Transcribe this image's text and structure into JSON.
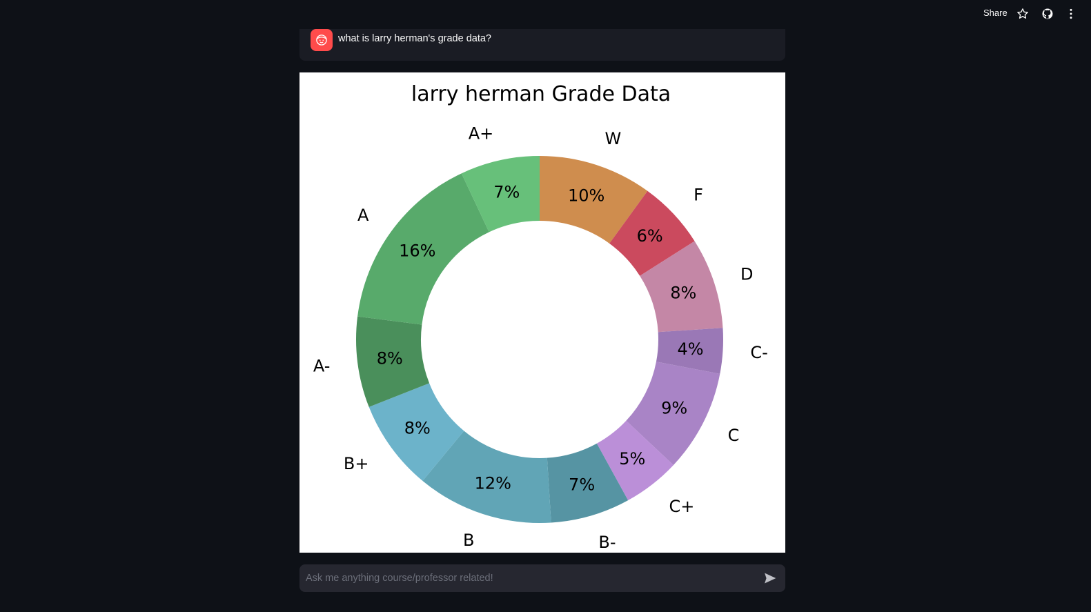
{
  "header": {
    "share_label": "Share",
    "icons": [
      "star-icon",
      "github-icon",
      "more-vertical-icon"
    ]
  },
  "chat": {
    "user_message": "what is larry herman's grade data?",
    "avatar_icon": "face-icon",
    "avatar_color": "#ff4b4b"
  },
  "chat_input": {
    "placeholder": "Ask me anything course/professor related!",
    "send_icon": "send-icon"
  },
  "chart_data": {
    "type": "pie",
    "title": "larry herman Grade Data",
    "donut": true,
    "start_angle_deg": 90,
    "direction": "clockwise",
    "slices": [
      {
        "label": "W",
        "value": 10,
        "display": "10%",
        "color": "#cf8d4e"
      },
      {
        "label": "F",
        "value": 6,
        "display": "6%",
        "color": "#cb4a5e"
      },
      {
        "label": "D",
        "value": 8,
        "display": "8%",
        "color": "#c487a6"
      },
      {
        "label": "C-",
        "value": 4,
        "display": "4%",
        "color": "#9a78b6"
      },
      {
        "label": "C",
        "value": 9,
        "display": "9%",
        "color": "#a984c6"
      },
      {
        "label": "C+",
        "value": 5,
        "display": "5%",
        "color": "#bb8fd8"
      },
      {
        "label": "B-",
        "value": 7,
        "display": "7%",
        "color": "#5694a3"
      },
      {
        "label": "B",
        "value": 12,
        "display": "12%",
        "color": "#61a5b6"
      },
      {
        "label": "B+",
        "value": 8,
        "display": "8%",
        "color": "#6cb3ca"
      },
      {
        "label": "A-",
        "value": 8,
        "display": "8%",
        "color": "#4a8f5b"
      },
      {
        "label": "A",
        "value": 16,
        "display": "16%",
        "color": "#58aa6b"
      },
      {
        "label": "A+",
        "value": 7,
        "display": "7%",
        "color": "#67c07a"
      }
    ]
  }
}
